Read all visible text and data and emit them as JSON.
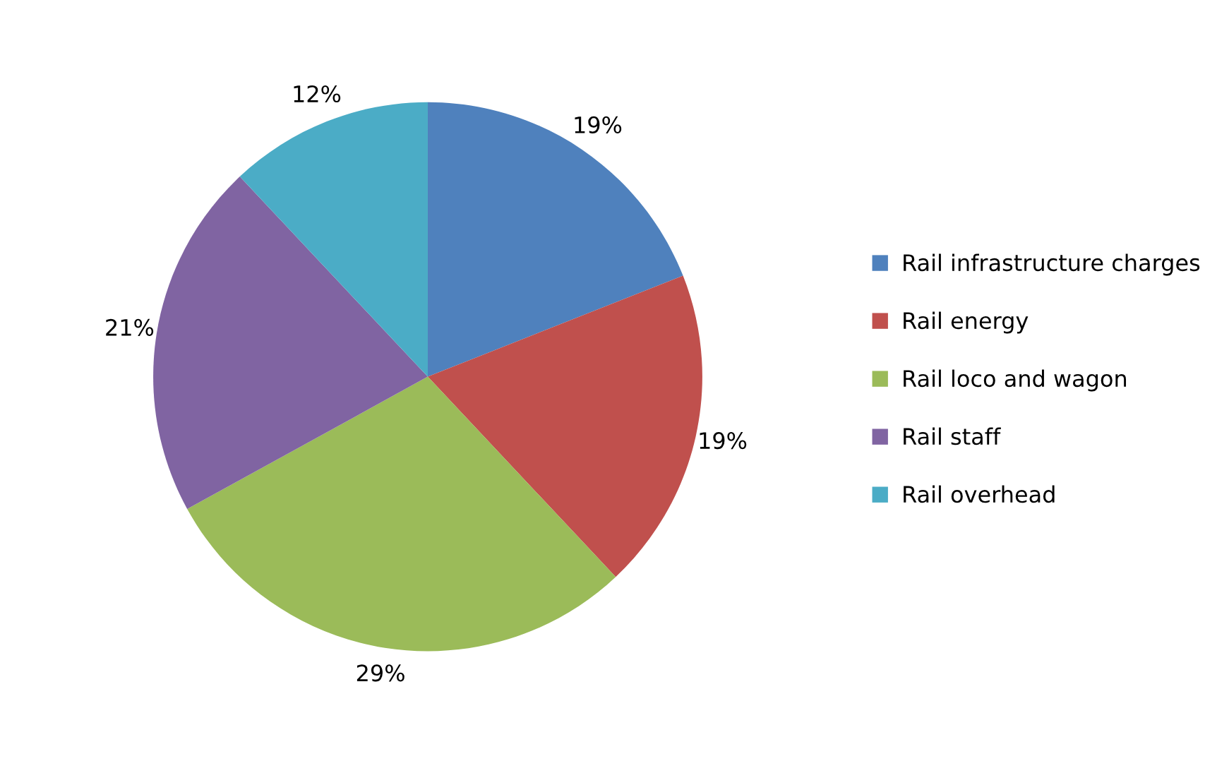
{
  "chart_data": {
    "type": "pie",
    "categories": [
      "Rail infrastructure charges",
      "Rail energy",
      "Rail loco and wagon",
      "Rail staff",
      "Rail overhead"
    ],
    "values": [
      19,
      19,
      29,
      21,
      12
    ],
    "colors": [
      "#4f81bd",
      "#c0504d",
      "#9bbb59",
      "#8064a2",
      "#4bacc6"
    ],
    "value_labels": [
      "19%",
      "19%",
      "29%",
      "21%",
      "12%"
    ],
    "legend": "right"
  }
}
